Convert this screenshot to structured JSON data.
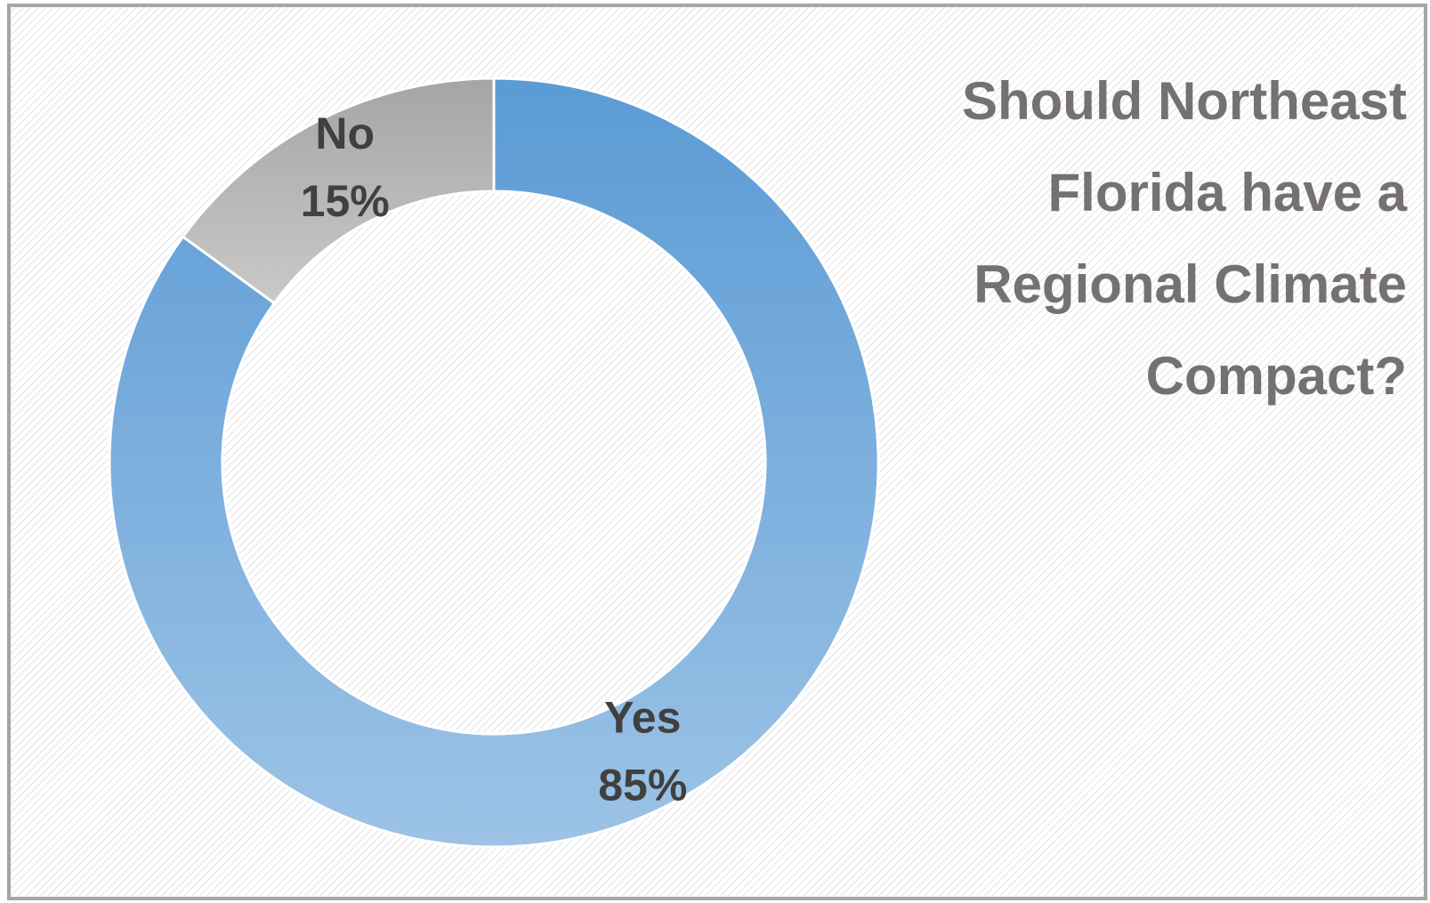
{
  "chart_data": {
    "type": "pie",
    "donut": true,
    "title": "Should Northeast Florida have a Regional Climate Compact?",
    "categories": [
      "Yes",
      "No"
    ],
    "values": [
      85,
      15
    ],
    "value_labels": [
      "85%",
      "15%"
    ],
    "colors": [
      "#5b9bd5",
      "#a5a5a5"
    ]
  }
}
